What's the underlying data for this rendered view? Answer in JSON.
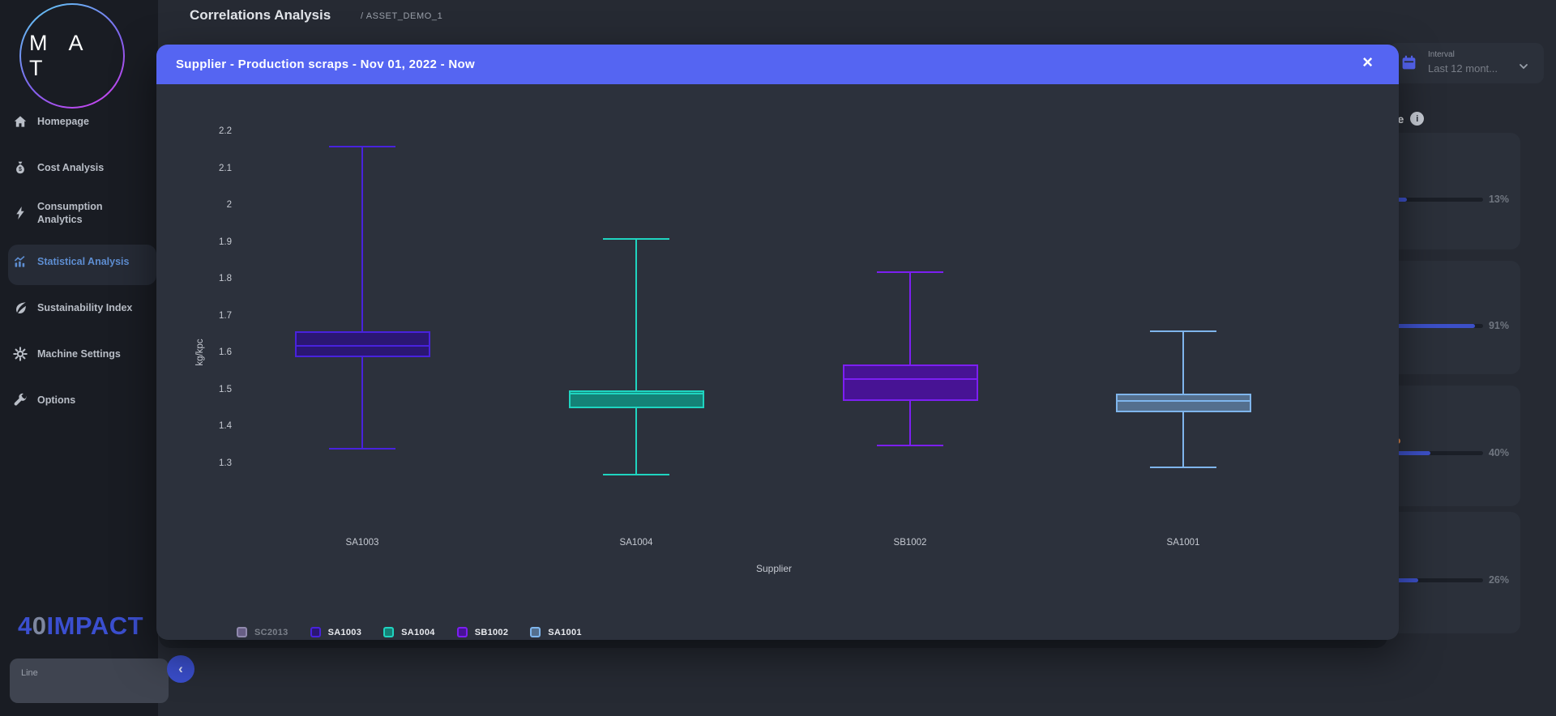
{
  "app": {
    "logo_text": "M A T",
    "brand": {
      "prefix": "4",
      "zero": "0",
      "suffix": "IMPACT"
    }
  },
  "header": {
    "title": "Correlations Analysis",
    "breadcrumb": "/ ASSET_DEMO_1"
  },
  "sidebar": {
    "items": [
      {
        "label": "Homepage",
        "icon": "home-icon",
        "active": false
      },
      {
        "label": "Cost Analysis",
        "icon": "money-bag-icon",
        "active": false
      },
      {
        "label": "Consumption Analytics",
        "icon": "lightning-icon",
        "active": false
      },
      {
        "label": "Statistical Analysis",
        "icon": "bar-chart-icon",
        "active": true
      },
      {
        "label": "Sustainability Index",
        "icon": "leaf-icon",
        "active": false
      },
      {
        "label": "Machine Settings",
        "icon": "gear-icon",
        "active": false
      },
      {
        "label": "Options",
        "icon": "wrench-icon",
        "active": false
      }
    ]
  },
  "modal": {
    "title": "Supplier - Production scraps - Nov 01, 2022 - Now",
    "close_label": "×",
    "header_color": "#5565f2"
  },
  "chart_data": {
    "type": "boxplot",
    "title": "Supplier - Production scraps - Nov 01, 2022 - Now",
    "xlabel": "Supplier",
    "ylabel": "kg/kpc",
    "yticks": [
      "2.2",
      "2.1",
      "2",
      "1.9",
      "1.8",
      "1.7",
      "1.6",
      "1.5",
      "1.4",
      "1.3"
    ],
    "ylim": [
      1.25,
      2.25
    ],
    "grid": false,
    "legend_position": "bottom-left",
    "categories": [
      "SA1003",
      "SA1004",
      "SB1002",
      "SA1001"
    ],
    "series": [
      {
        "name": "SA1003",
        "min": 1.34,
        "q1": 1.59,
        "median": 1.62,
        "q3": 1.66,
        "max": 2.16,
        "stroke": "#4822dd",
        "fill": "#2b1773"
      },
      {
        "name": "SA1004",
        "min": 1.27,
        "q1": 1.45,
        "median": 1.49,
        "q3": 1.5,
        "max": 1.91,
        "stroke": "#1fd4c0",
        "fill": "#148277"
      },
      {
        "name": "SB1002",
        "min": 1.35,
        "q1": 1.47,
        "median": 1.53,
        "q3": 1.57,
        "max": 1.82,
        "stroke": "#7c1ff2",
        "fill": "#471394"
      },
      {
        "name": "SA1001",
        "min": 1.29,
        "q1": 1.44,
        "median": 1.47,
        "q3": 1.49,
        "max": 1.66,
        "stroke": "#7fb5ec",
        "fill": "#546f8e"
      }
    ],
    "legend": [
      {
        "label": "SC2013",
        "fill": "#675e85",
        "stroke": "#9089ad",
        "disabled": true
      },
      {
        "label": "SA1003",
        "fill": "#2b1773",
        "stroke": "#4822dd",
        "disabled": false
      },
      {
        "label": "SA1004",
        "fill": "#148277",
        "stroke": "#1fd4c0",
        "disabled": false
      },
      {
        "label": "SB1002",
        "fill": "#471394",
        "stroke": "#7c1ff2",
        "disabled": false
      },
      {
        "label": "SA1001",
        "fill": "#546f8e",
        "stroke": "#7fb5ec",
        "disabled": false
      }
    ]
  },
  "right_panel": {
    "interval": {
      "label": "Interval",
      "value": "Last 12 mont...",
      "icon": "calendar-icon"
    },
    "section_fragment": {
      "text": "ate",
      "icon": "info-icon",
      "info_glyph": "i"
    },
    "cards": [
      {
        "percent_label": "13%",
        "percent": 13,
        "fill_color": "#3c50c8",
        "dot": false
      },
      {
        "percent_label": "91%",
        "percent": 91,
        "fill_color": "#3c50c8",
        "dot": false
      },
      {
        "percent_label": "40%",
        "percent": 40,
        "fill_color": "#3c50c8",
        "dot": true
      },
      {
        "percent_label": "26%",
        "percent": 26,
        "fill_color": "#3c50c8",
        "dot": false
      }
    ]
  },
  "footer": {
    "line_widget_label": "Line",
    "collapse_icon_glyph": "‹"
  }
}
